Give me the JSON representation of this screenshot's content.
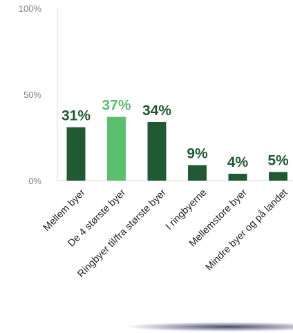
{
  "chart_data": {
    "type": "bar",
    "categories": [
      "Mellem byer",
      "De 4 største byer",
      "Ringbyer til/fra største byer",
      "I ringbyerne",
      "Mellemstore byer",
      "Mindre byer og på landet"
    ],
    "values": [
      31,
      37,
      34,
      9,
      4,
      5
    ],
    "value_labels": [
      "31%",
      "37%",
      "34%",
      "9%",
      "4%",
      "5%"
    ],
    "ylim": [
      0,
      100
    ],
    "y_ticks": [
      {
        "value": 0,
        "label": "0%"
      },
      {
        "value": 50,
        "label": "50%"
      },
      {
        "value": 100,
        "label": "100%"
      }
    ],
    "colors": {
      "bar": "#215a32",
      "highlight": "#5cbf6e",
      "label": "#215a32",
      "highlight_label": "#5cbf6e",
      "axis": "#d9d9d9"
    },
    "highlight_index": 1,
    "grid": false,
    "legend": "none"
  }
}
